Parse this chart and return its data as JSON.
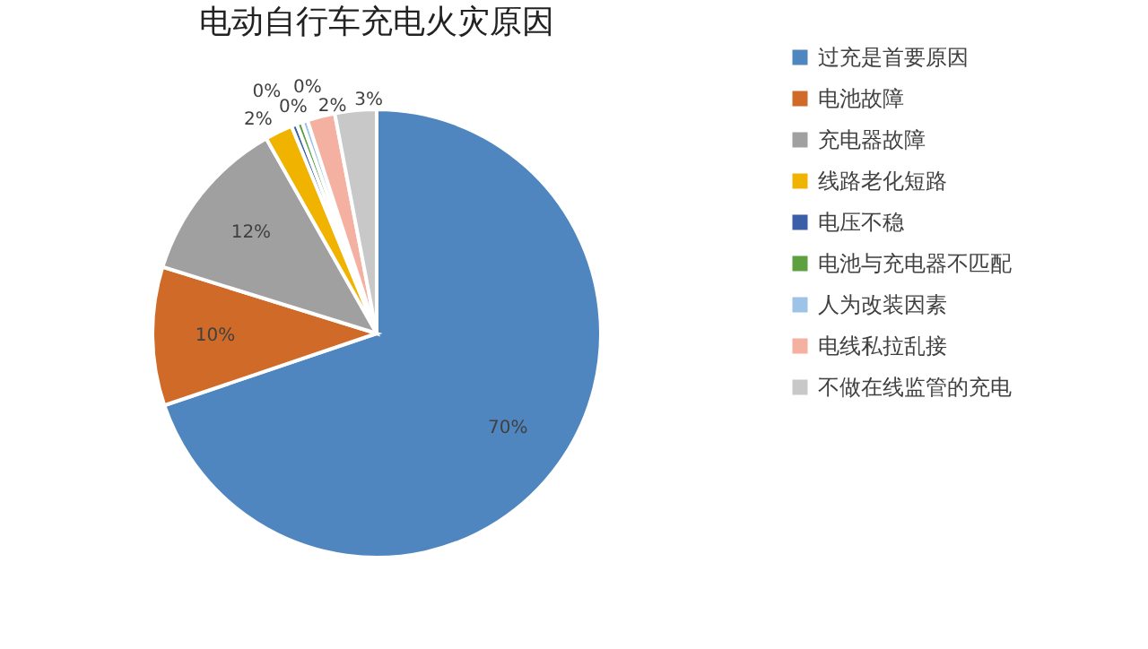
{
  "chart_data": {
    "type": "pie",
    "title": "电动自行车充电火灾原因",
    "categories": [
      "过充是首要原因",
      "电池故障",
      "充电器故障",
      "线路老化短路",
      "电压不稳",
      "电池与充电器不匹配",
      "人为改装因素",
      "电线私拉乱接",
      "不做在线监管的充电"
    ],
    "values": [
      69.8,
      10,
      12,
      2,
      0.4,
      0.4,
      0.4,
      2,
      3
    ],
    "value_labels": [
      "70%",
      "10%",
      "12%",
      "2%",
      "0%",
      "0%",
      "0%",
      "2%",
      "3%"
    ],
    "colors": [
      "#4f86c0",
      "#d06a28",
      "#a0a0a0",
      "#f0b400",
      "#3a5fa8",
      "#5ea040",
      "#9dc3e6",
      "#f4b0a0",
      "#c8c8c8"
    ],
    "legend": "right"
  }
}
